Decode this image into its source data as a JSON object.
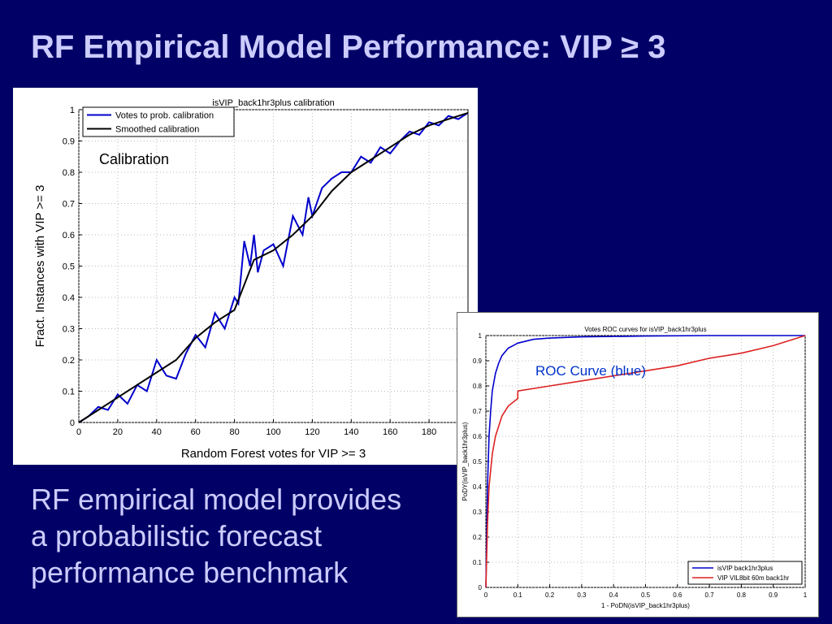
{
  "slide": {
    "title": "RF Empirical Model Performance: VIP ≥ 3",
    "body_lines": [
      "RF empirical model provides",
      "a probabilistic forecast",
      "performance benchmark"
    ]
  },
  "colors": {
    "background": "#000066",
    "text": "#ccccff",
    "blue_series": "#0000cc",
    "red_series": "#dd2222"
  },
  "chart_data": [
    {
      "type": "line",
      "title": "isVIP_back1hr3plus calibration",
      "annotation": "Calibration",
      "xlabel": "Random Forest votes for VIP >= 3",
      "ylabel": "Fract. Instances with VIP >= 3",
      "xlim": [
        0,
        200
      ],
      "ylim": [
        0,
        1
      ],
      "xticks": [
        "0",
        "20",
        "40",
        "60",
        "80",
        "100",
        "120",
        "140",
        "160",
        "180"
      ],
      "yticks": [
        "0",
        "0.1",
        "0.2",
        "0.3",
        "0.4",
        "0.5",
        "0.6",
        "0.7",
        "0.8",
        "0.9",
        "1"
      ],
      "grid": true,
      "legend_position": "top-left",
      "series": [
        {
          "name": "Votes to prob. calibration",
          "color": "#0000cc",
          "x": [
            0,
            5,
            10,
            15,
            20,
            25,
            30,
            35,
            40,
            45,
            50,
            55,
            60,
            65,
            70,
            75,
            80,
            82,
            85,
            88,
            90,
            92,
            95,
            100,
            105,
            110,
            115,
            118,
            120,
            125,
            130,
            135,
            140,
            145,
            150,
            155,
            160,
            165,
            170,
            175,
            180,
            185,
            190,
            195,
            200
          ],
          "y": [
            0,
            0.02,
            0.05,
            0.04,
            0.09,
            0.06,
            0.12,
            0.1,
            0.2,
            0.15,
            0.14,
            0.22,
            0.28,
            0.24,
            0.35,
            0.3,
            0.4,
            0.38,
            0.58,
            0.5,
            0.6,
            0.48,
            0.55,
            0.57,
            0.5,
            0.66,
            0.6,
            0.72,
            0.66,
            0.75,
            0.78,
            0.8,
            0.8,
            0.85,
            0.83,
            0.88,
            0.86,
            0.9,
            0.93,
            0.92,
            0.96,
            0.95,
            0.98,
            0.97,
            0.99
          ]
        },
        {
          "name": "Smoothed calibration",
          "color": "#000000",
          "x": [
            0,
            10,
            20,
            30,
            40,
            50,
            60,
            70,
            80,
            90,
            100,
            110,
            120,
            130,
            140,
            150,
            160,
            170,
            180,
            190,
            200
          ],
          "y": [
            0,
            0.04,
            0.08,
            0.12,
            0.16,
            0.2,
            0.27,
            0.32,
            0.36,
            0.52,
            0.55,
            0.6,
            0.66,
            0.74,
            0.8,
            0.84,
            0.88,
            0.92,
            0.95,
            0.97,
            0.99
          ]
        }
      ]
    },
    {
      "type": "line",
      "title": "Votes ROC curves for isVIP_back1hr3plus",
      "annotation": "ROC Curve (blue)",
      "xlabel": "1 - PoDN(isVIP_back1hr3plus)",
      "ylabel": "PoDY(isVIP_back1hr3plus)",
      "xlim": [
        0,
        1
      ],
      "ylim": [
        0,
        1
      ],
      "xticks": [
        "0",
        "0.1",
        "0.2",
        "0.3",
        "0.4",
        "0.5",
        "0.6",
        "0.7",
        "0.8",
        "0.9",
        "1"
      ],
      "yticks": [
        "0",
        "0.1",
        "0.2",
        "0.3",
        "0.4",
        "0.5",
        "0.6",
        "0.7",
        "0.8",
        "0.9",
        "1"
      ],
      "grid": true,
      "legend_position": "bottom-right",
      "series": [
        {
          "name": "isVIP back1hr3plus",
          "color": "#0000cc",
          "x": [
            0,
            0.005,
            0.01,
            0.015,
            0.02,
            0.03,
            0.04,
            0.05,
            0.07,
            0.1,
            0.15,
            0.2,
            0.3,
            0.5,
            0.7,
            1
          ],
          "y": [
            0,
            0.4,
            0.6,
            0.7,
            0.78,
            0.85,
            0.89,
            0.92,
            0.95,
            0.97,
            0.985,
            0.99,
            0.995,
            0.998,
            1,
            1
          ]
        },
        {
          "name": "VIP VIL8bit 60m back1hr",
          "color": "#dd2222",
          "x": [
            0,
            0.005,
            0.01,
            0.02,
            0.03,
            0.05,
            0.07,
            0.1,
            0.1,
            0.2,
            0.3,
            0.4,
            0.5,
            0.6,
            0.7,
            0.8,
            0.9,
            1
          ],
          "y": [
            0,
            0.25,
            0.4,
            0.53,
            0.6,
            0.68,
            0.72,
            0.75,
            0.78,
            0.8,
            0.82,
            0.84,
            0.86,
            0.88,
            0.91,
            0.93,
            0.96,
            1
          ]
        }
      ]
    }
  ]
}
